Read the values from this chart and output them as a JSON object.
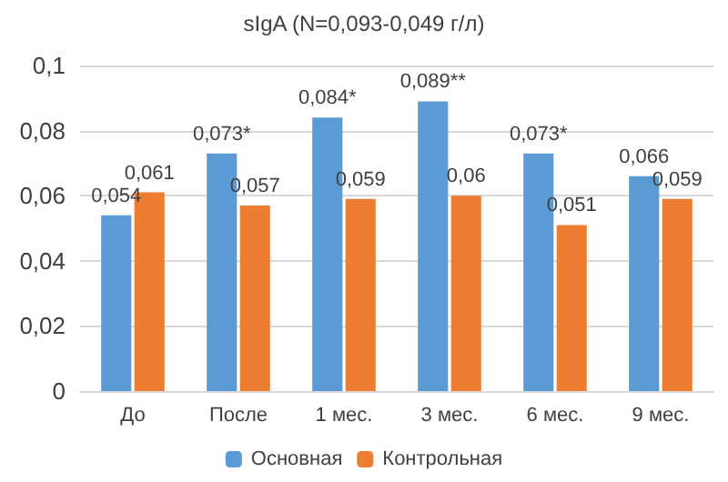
{
  "chart_data": {
    "type": "bar",
    "title": "sIgA (N=0,093-0,049 г/л)",
    "categories": [
      "До",
      "После",
      "1 мес.",
      "3 мес.",
      "6 мес.",
      "9 мес."
    ],
    "series": [
      {
        "name": "Основная",
        "color": "#5b9bd5",
        "values": [
          0.054,
          0.073,
          0.084,
          0.089,
          0.073,
          0.066
        ],
        "value_labels": [
          "0,054",
          "0,073*",
          "0,084*",
          "0,089**",
          "0,073*",
          "0,066"
        ]
      },
      {
        "name": "Контрольная",
        "color": "#ed7d31",
        "values": [
          0.061,
          0.057,
          0.059,
          0.06,
          0.051,
          0.059
        ],
        "value_labels": [
          "0,061",
          "0,057",
          "0,059",
          "0,06",
          "0,051",
          "0,059"
        ]
      }
    ],
    "ylim": [
      0,
      0.1
    ],
    "yticks": [
      0,
      {
        "value": 0.02,
        "label": "0,02"
      },
      {
        "value": 0.04,
        "label": "0,04"
      },
      {
        "value": 0.06,
        "label": "0,06"
      },
      {
        "value": 0.08,
        "label": "0,08"
      },
      {
        "value": 0.1,
        "label": "0,1"
      }
    ],
    "grid": "y",
    "legend": "bottom"
  }
}
